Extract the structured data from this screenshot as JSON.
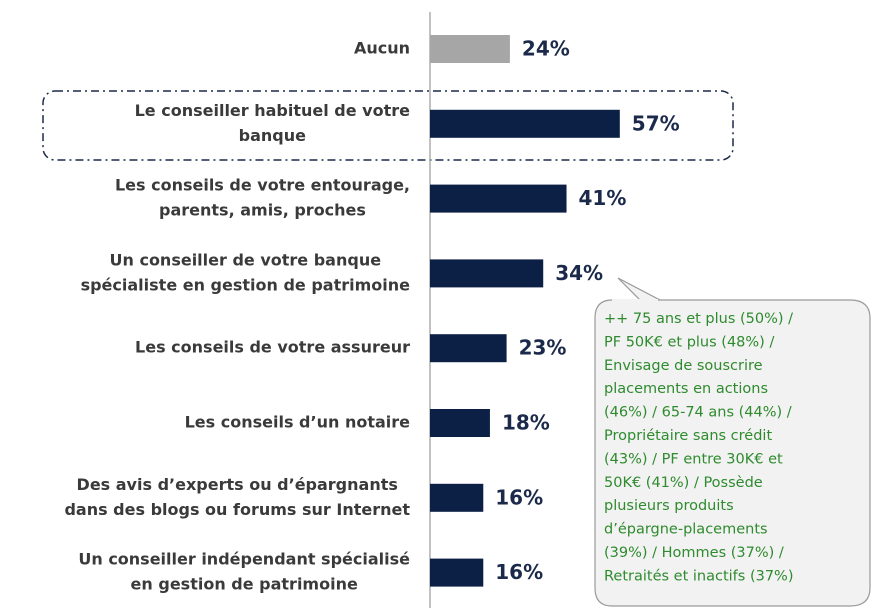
{
  "chart_data": {
    "type": "hbar",
    "categories": [
      [
        "Aucun"
      ],
      [
        "Le conseiller habituel de votre",
        "banque"
      ],
      [
        "Les conseils de votre entourage,",
        "parents, amis, proches"
      ],
      [
        "Un conseiller de votre banque",
        "spécialiste en gestion de patrimoine"
      ],
      [
        "Les conseils de votre assureur"
      ],
      [
        "Les conseils d’un notaire"
      ],
      [
        "Des avis d’experts ou d’épargnants",
        "dans des blogs ou forums sur Internet"
      ],
      [
        "Un conseiller indépendant spécialisé",
        "en gestion de patrimoine"
      ]
    ],
    "values": [
      24,
      57,
      41,
      34,
      23,
      18,
      16,
      16
    ],
    "value_labels": [
      "24%",
      "57%",
      "41%",
      "34%",
      "23%",
      "18%",
      "16%",
      "16%"
    ],
    "colors": [
      "#a6a6a6",
      "#0c1f45",
      "#0c1f45",
      "#0c1f45",
      "#0c1f45",
      "#0c1f45",
      "#0c1f45",
      "#0c1f45"
    ],
    "xlim": [
      0,
      100
    ],
    "annotation": [
      "++ 75 ans et plus (50%) /",
      "PF 50K€ et plus (48%) /",
      "Envisage de souscrire",
      "placements en actions",
      "(46%) / 65-74 ans (44%) /",
      "Propriétaire sans crédit",
      "(43%) / PF entre 30K€ et",
      "50K€ (41%) / Possède",
      "plusieurs produits",
      "d’épargne-placements",
      "(39%) / Hommes (37%) /",
      "Retraités et inactifs (37%)"
    ]
  }
}
